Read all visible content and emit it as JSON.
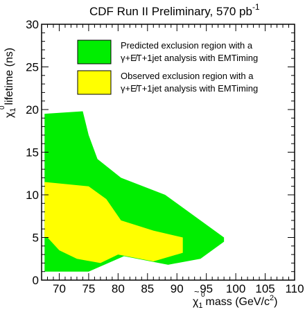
{
  "chart_data": {
    "type": "area",
    "title": "CDF Run II Preliminary, 570 pb",
    "title_superscript": "-1",
    "xlabel": "mass (GeV/c",
    "xlabel_symbol": "χ",
    "xlabel_superscript": "2",
    "xlabel_close": ")",
    "ylabel": "lifetime (ns)",
    "ylabel_symbol": "χ",
    "tilde": "~",
    "zero": "0",
    "one": "1",
    "xlim": [
      67,
      110
    ],
    "ylim": [
      0,
      30
    ],
    "x_ticks": [
      70,
      75,
      80,
      85,
      90,
      95,
      100,
      105,
      110
    ],
    "y_ticks": [
      0,
      5,
      10,
      15,
      20,
      25,
      30
    ],
    "grid": false,
    "legend_position": "top-right",
    "series": [
      {
        "name": "Predicted exclusion region with a γ+E̸T+1jet analysis with EMTiming",
        "legend_line1": "Predicted exclusion region with a",
        "legend_line2": "γ+E̸T+1jet analysis with EMTiming",
        "color": "#00ee00",
        "x": [
          67.5,
          74.0,
          75.0,
          76.5,
          80.5,
          88.0,
          98.0,
          98.0,
          94.0,
          88.5,
          81.0,
          75.0,
          67.5
        ],
        "y": [
          19.5,
          19.8,
          17.0,
          14.2,
          12.0,
          10.0,
          5.0,
          4.5,
          2.5,
          1.8,
          2.8,
          1.0,
          1.0
        ]
      },
      {
        "name": "Observed exclusion region with a γ+E̸T+1jet analysis with EMTiming",
        "legend_line1": "Observed exclusion region with a",
        "legend_line2": "γ+E̸T+1jet analysis with EMTiming",
        "color": "#ffff00",
        "x": [
          67.5,
          75.0,
          78.0,
          80.5,
          86.0,
          91.0,
          91.0,
          86.0,
          80.0,
          77.0,
          73.0,
          70.0,
          68.0,
          67.5
        ],
        "y": [
          11.5,
          11.0,
          9.5,
          7.0,
          5.8,
          5.0,
          3.2,
          2.2,
          3.0,
          2.0,
          2.5,
          3.5,
          5.0,
          5.0
        ]
      }
    ]
  }
}
